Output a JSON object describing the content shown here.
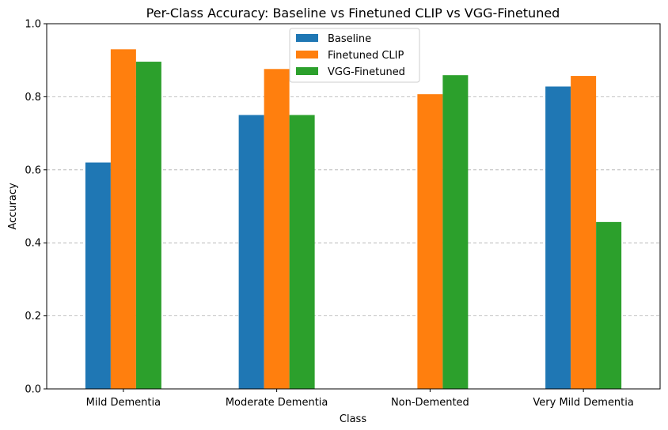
{
  "chart_data": {
    "type": "bar",
    "title": "Per-Class Accuracy: Baseline vs Finetuned CLIP vs VGG-Finetuned",
    "xlabel": "Class",
    "ylabel": "Accuracy",
    "categories": [
      "Mild Dementia",
      "Moderate Dementia",
      "Non-Demented",
      "Very Mild Dementia"
    ],
    "series": [
      {
        "name": "Baseline",
        "color": "#1f77b4",
        "values": [
          0.62,
          0.75,
          0.0,
          0.828
        ]
      },
      {
        "name": "Finetuned CLIP",
        "color": "#ff7f0e",
        "values": [
          0.93,
          0.876,
          0.807,
          0.857
        ]
      },
      {
        "name": "VGG-Finetuned",
        "color": "#2ca02c",
        "values": [
          0.896,
          0.75,
          0.859,
          0.457
        ]
      }
    ],
    "ylim": [
      0,
      1.0
    ],
    "yticks": [
      "0.0",
      "0.2",
      "0.4",
      "0.6",
      "0.8",
      "1.0"
    ],
    "grid": "y-dashed",
    "legend_position": "top-center"
  }
}
